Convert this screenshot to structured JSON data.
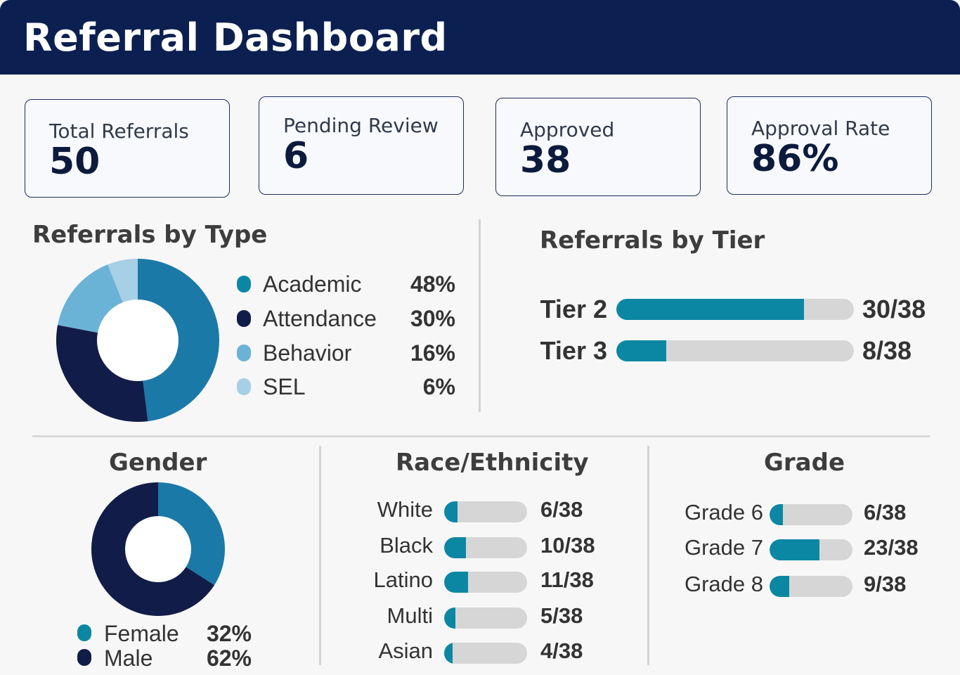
{
  "header": {
    "title": "Referral Dashboard"
  },
  "kpis": [
    {
      "label": "Total Referrals",
      "value": "50"
    },
    {
      "label": "Pending Review",
      "value": "6"
    },
    {
      "label": "Approved",
      "value": "38"
    },
    {
      "label": "Approval Rate",
      "value": "86%"
    }
  ],
  "colors": {
    "teal": "#0b87a3",
    "navy": "#121c48",
    "mid_blue": "#1b79a8",
    "light_blue": "#6ab3d6",
    "pale_blue": "#a7cfe6",
    "track": "#d6d6d6",
    "header": "#0b2050"
  },
  "chart_data": [
    {
      "type": "pie",
      "title": "Referrals by Type",
      "categories": [
        "Academic",
        "Attendance",
        "Behavior",
        "SEL"
      ],
      "values": [
        48,
        30,
        16,
        6
      ],
      "value_labels": [
        "48%",
        "30%",
        "16%",
        "6%"
      ],
      "slice_colors": [
        "#1b79a8",
        "#121c48",
        "#6ab3d6",
        "#a7cfe6"
      ],
      "legend_colors": [
        "#0b87a3",
        "#121c48",
        "#6ab3d6",
        "#a7cfe6"
      ],
      "legend": "right"
    },
    {
      "type": "bar",
      "title": "Referrals by Tier",
      "categories": [
        "Tier 2",
        "Tier 3"
      ],
      "values": [
        30,
        8
      ],
      "total": 38,
      "value_labels": [
        "30/38",
        "8/38"
      ]
    },
    {
      "type": "pie",
      "title": "Gender",
      "categories": [
        "Female",
        "Male"
      ],
      "values": [
        32,
        62
      ],
      "value_labels": [
        "32%",
        "62%"
      ],
      "slice_colors": [
        "#1b79a8",
        "#121c48"
      ],
      "legend_colors": [
        "#0b87a3",
        "#121c48"
      ],
      "legend": "bottom"
    },
    {
      "type": "bar",
      "title": "Race/Ethnicity",
      "categories": [
        "White",
        "Black",
        "Latino",
        "Multi",
        "Asian"
      ],
      "values": [
        6,
        10,
        11,
        5,
        4
      ],
      "total": 38,
      "value_labels": [
        "6/38",
        "10/38",
        "11/38",
        "5/38",
        "4/38"
      ]
    },
    {
      "type": "bar",
      "title": "Grade",
      "categories": [
        "Grade 6",
        "Grade 7",
        "Grade 8"
      ],
      "values": [
        6,
        23,
        9
      ],
      "total": 38,
      "value_labels": [
        "6/38",
        "23/38",
        "9/38"
      ]
    }
  ]
}
